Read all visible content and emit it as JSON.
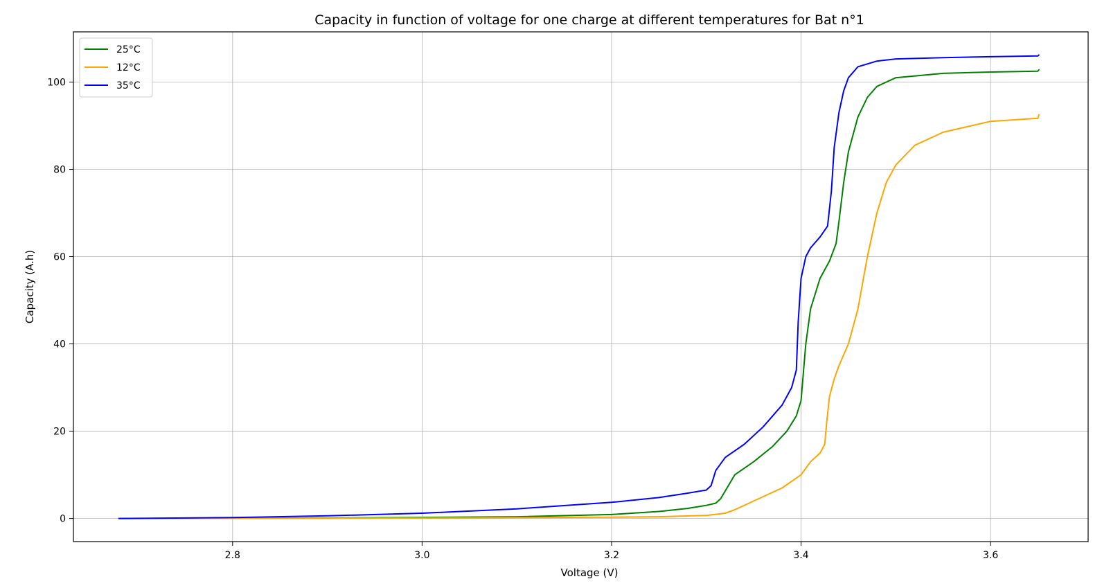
{
  "chart_data": {
    "type": "line",
    "title": "Capacity in function of voltage for one charge at different temperatures for Bat n°1",
    "xlabel": "Voltage (V)",
    "ylabel": "Capacity (A.h)",
    "xlim": [
      2.632,
      3.703
    ],
    "ylim": [
      -5.3,
      111.5
    ],
    "xticks": [
      2.8,
      3.0,
      3.2,
      3.4,
      3.6
    ],
    "xtick_labels": [
      "2.8",
      "3.0",
      "3.2",
      "3.4",
      "3.6"
    ],
    "yticks": [
      0,
      20,
      40,
      60,
      80,
      100
    ],
    "ytick_labels": [
      "0",
      "20",
      "40",
      "60",
      "80",
      "100"
    ],
    "grid": true,
    "legend_position": "top-left",
    "series": [
      {
        "name": "25°C",
        "color": "#008000",
        "x": [
          2.68,
          2.9,
          3.1,
          3.2,
          3.25,
          3.28,
          3.3,
          3.31,
          3.315,
          3.33,
          3.35,
          3.37,
          3.385,
          3.395,
          3.4,
          3.405,
          3.41,
          3.42,
          3.43,
          3.437,
          3.44,
          3.445,
          3.45,
          3.46,
          3.47,
          3.48,
          3.5,
          3.55,
          3.6,
          3.65,
          3.651
        ],
        "y": [
          0,
          0.1,
          0.4,
          0.9,
          1.6,
          2.3,
          3.0,
          3.5,
          4.5,
          10,
          13,
          16.5,
          20,
          23.5,
          27,
          40,
          48,
          55,
          59,
          63,
          68,
          77,
          84,
          92,
          96.5,
          99,
          101,
          102,
          102.3,
          102.5,
          102.8
        ]
      },
      {
        "name": "12°C",
        "color": "#FFA500",
        "x": [
          2.68,
          2.9,
          3.1,
          3.2,
          3.25,
          3.3,
          3.32,
          3.33,
          3.35,
          3.38,
          3.4,
          3.41,
          3.42,
          3.425,
          3.427,
          3.43,
          3.435,
          3.44,
          3.45,
          3.46,
          3.47,
          3.48,
          3.49,
          3.5,
          3.52,
          3.55,
          3.6,
          3.65,
          3.651
        ],
        "y": [
          0,
          0.05,
          0.2,
          0.3,
          0.4,
          0.7,
          1.2,
          2,
          4,
          7,
          10,
          13,
          15,
          17,
          22,
          28,
          32,
          35,
          40,
          48,
          60,
          70,
          77,
          81,
          85.5,
          88.5,
          91,
          91.7,
          92.5
        ]
      },
      {
        "name": "35°C",
        "color": "#0000FF",
        "x": [
          2.68,
          2.8,
          2.9,
          3.0,
          3.1,
          3.2,
          3.25,
          3.28,
          3.3,
          3.305,
          3.31,
          3.32,
          3.34,
          3.36,
          3.38,
          3.39,
          3.395,
          3.397,
          3.4,
          3.405,
          3.41,
          3.42,
          3.428,
          3.432,
          3.435,
          3.44,
          3.445,
          3.45,
          3.46,
          3.48,
          3.5,
          3.55,
          3.6,
          3.65,
          3.651
        ],
        "y": [
          0,
          0.2,
          0.6,
          1.2,
          2.2,
          3.7,
          4.8,
          5.8,
          6.5,
          7.5,
          11,
          14,
          17,
          21,
          26,
          30,
          34,
          45,
          55,
          60,
          62,
          64.5,
          67,
          75,
          85,
          93,
          98,
          101,
          103.5,
          104.8,
          105.3,
          105.6,
          105.8,
          106,
          106.2
        ]
      }
    ]
  }
}
